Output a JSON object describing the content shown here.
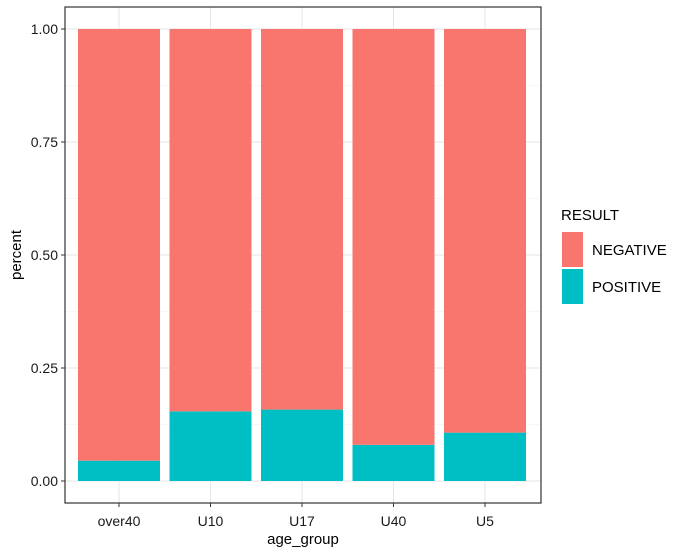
{
  "chart_data": {
    "type": "bar",
    "stacked": true,
    "categories": [
      "over40",
      "U10",
      "U17",
      "U40",
      "U5"
    ],
    "series": [
      {
        "name": "NEGATIVE",
        "values": [
          0.955,
          0.846,
          0.842,
          0.92,
          0.893
        ],
        "color": "#F8766D"
      },
      {
        "name": "POSITIVE",
        "values": [
          0.045,
          0.154,
          0.158,
          0.08,
          0.107
        ],
        "color": "#00BFC4"
      }
    ],
    "xlabel": "age_group",
    "ylabel": "percent",
    "ylim": [
      0,
      1
    ],
    "yticks": [
      "0.00",
      "0.25",
      "0.50",
      "0.75",
      "1.00"
    ],
    "grid": true,
    "legend": {
      "title": "RESULT",
      "placement": "right"
    }
  }
}
